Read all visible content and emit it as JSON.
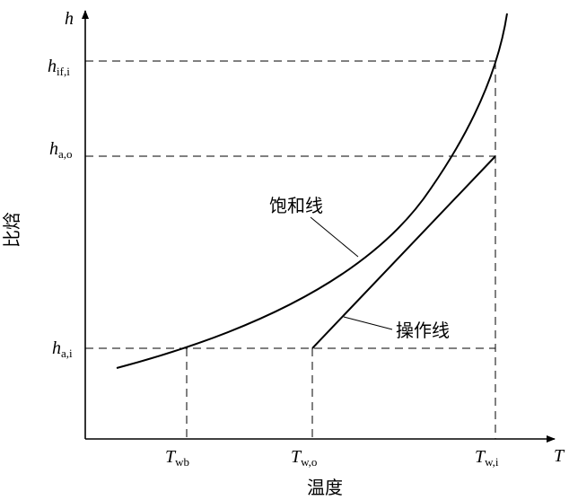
{
  "axes": {
    "y_symbol": "h",
    "x_symbol": "T",
    "y_title": "比焓",
    "x_title": "温度"
  },
  "y_ticks": [
    {
      "main": "h",
      "sub": "if,i"
    },
    {
      "main": "h",
      "sub": "a,o"
    },
    {
      "main": "h",
      "sub": "a,i"
    }
  ],
  "x_ticks": [
    {
      "main": "T",
      "sub": "wb"
    },
    {
      "main": "T",
      "sub": "w,o"
    },
    {
      "main": "T",
      "sub": "w,i"
    }
  ],
  "curves": {
    "saturation_label": "饱和线",
    "operating_label": "操作线"
  },
  "colors": {
    "line": "#000000",
    "background": "#ffffff"
  }
}
